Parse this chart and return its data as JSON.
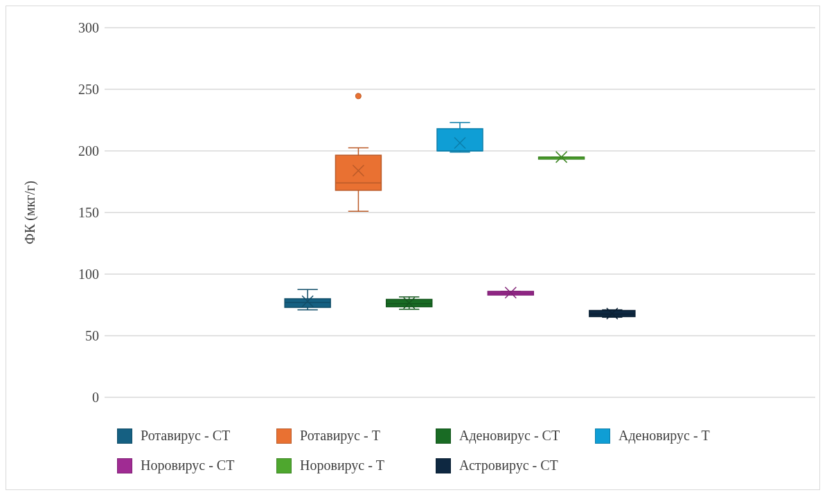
{
  "chart_data": {
    "type": "box",
    "ylabel": "ФК (мкг/г)",
    "categories": [
      null
    ],
    "ylim": [
      0,
      300
    ],
    "yticks": [
      0,
      50,
      100,
      150,
      200,
      250,
      300
    ],
    "grid": "y",
    "legend": "bottom",
    "series": [
      {
        "name": "Ротавирус - СТ",
        "color": "#156082",
        "boxes": [
          {
            "low": 71,
            "q1": 73,
            "median": 77,
            "q3": 80,
            "high": 87.5,
            "mean": 78
          }
        ]
      },
      {
        "name": "Ротавирус - Т",
        "color": "#e97132",
        "boxes": [
          {
            "low": 151,
            "q1": 168,
            "median": 174,
            "q3": 196.5,
            "high": 202.5,
            "mean": 184,
            "outliers": [
              244.5
            ]
          }
        ]
      },
      {
        "name": "Аденовирус - СТ",
        "color": "#196b24",
        "boxes": [
          {
            "low": 71.5,
            "q1": 73.5,
            "median": 76,
            "q3": 79.5,
            "high": 81.5,
            "mean": 76.5
          }
        ]
      },
      {
        "name": "Аденовирус - Т",
        "color": "#0f9ed5",
        "boxes": [
          {
            "low": 199,
            "q1": 200,
            "median": 200,
            "q3": 218,
            "high": 223,
            "mean": 206.5
          }
        ]
      },
      {
        "name": "Норовирус - СТ",
        "color": "#a02b93",
        "boxes": [
          {
            "low": 83,
            "q1": 83,
            "median": 84.5,
            "q3": 86,
            "high": 86,
            "mean": 85
          }
        ]
      },
      {
        "name": "Норовирус - Т",
        "color": "#4ea72e",
        "boxes": [
          {
            "low": 195,
            "q1": 195,
            "median": 195,
            "q3": 195,
            "high": 195,
            "mean": 195
          }
        ]
      },
      {
        "name": "Астровирус - СТ",
        "color": "#0e2841",
        "boxes": [
          {
            "low": 65,
            "q1": 65.5,
            "median": 67.5,
            "q3": 70.5,
            "high": 71,
            "mean": 68
          }
        ]
      }
    ]
  }
}
